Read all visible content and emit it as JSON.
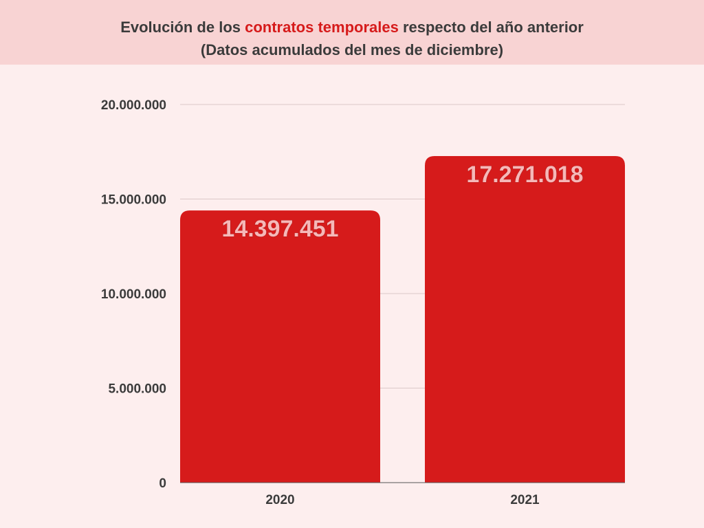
{
  "chart_data": {
    "type": "bar",
    "title": {
      "before": "Evolución de los ",
      "highlight": "contratos temporales",
      "after": " respecto del año anterior"
    },
    "subtitle": "(Datos acumulados del mes de diciembre)",
    "categories": [
      "2020",
      "2021"
    ],
    "values": [
      14397451,
      17271018
    ],
    "data_labels": [
      "14.397.451",
      "17.271.018"
    ],
    "ylim": [
      0,
      20000000
    ],
    "yticks": [
      0,
      5000000,
      10000000,
      15000000,
      20000000
    ],
    "ytick_labels": [
      "0",
      "5.000.000",
      "10.000.000",
      "15.000.000",
      "20.000.000"
    ],
    "grid": true,
    "legend": "none",
    "colors": {
      "bar": "#d61b1b",
      "data_label": "#f6b8b8",
      "title_highlight": "#d61b1b",
      "text": "#3b3b3b",
      "banner": "#f8d3d3",
      "background": "#fdeeee"
    }
  }
}
